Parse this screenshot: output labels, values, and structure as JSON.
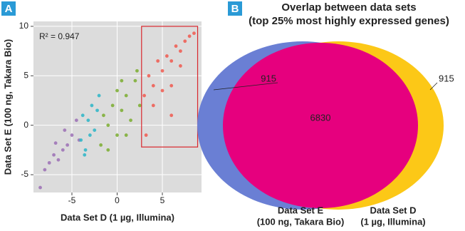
{
  "chart_data": [
    {
      "type": "scatter",
      "panel_label": "A",
      "x_label": "Data Set D (1 µg, Illumina)",
      "y_label": "Data Set E (100 ng, Takara Bio)",
      "annotation": "R² = 0.947",
      "xlim": [
        -9.25,
        9.33
      ],
      "ylim": [
        -6.8,
        10.5
      ],
      "xticks": [
        -5,
        0,
        5
      ],
      "yticks": [
        -5,
        0,
        5,
        10
      ],
      "grid": true,
      "highlight_box": {
        "xlim": [
          2.7,
          8.9
        ],
        "ylim": [
          -2.2,
          10
        ],
        "color": "#d9262c"
      },
      "series": [
        {
          "color": "#9b6fb5",
          "x": [
            -8,
            -7.5,
            -7,
            -6.8,
            -6.5,
            -6,
            -5.8,
            -5.5,
            -5,
            -4.5,
            -4.2,
            -8.5
          ],
          "y": [
            -4.5,
            -3.8,
            -3,
            -1.8,
            -3.5,
            -2.5,
            -0.5,
            -2,
            -1,
            0.5,
            -1.5,
            -6.3
          ]
        },
        {
          "color": "#2ab5c7",
          "x": [
            -4,
            -3.8,
            -3.5,
            -3.2,
            -3,
            -2.8,
            -2.5,
            -2.2,
            -2,
            -3.6
          ],
          "y": [
            -1.5,
            1,
            -2.5,
            0.5,
            -1,
            2,
            -0.5,
            1.5,
            3,
            -3
          ]
        },
        {
          "color": "#7aad2f",
          "x": [
            -1.8,
            -1.5,
            -1,
            -0.5,
            0,
            0.5,
            1,
            1.5,
            2,
            2.5,
            -1,
            0,
            1,
            2.2,
            0.5
          ],
          "y": [
            -2,
            1,
            0,
            2,
            -1,
            1.5,
            3,
            0.5,
            4.5,
            2,
            -2.5,
            3.5,
            -1,
            5.5,
            4.5
          ]
        },
        {
          "color": "#f0594f",
          "x": [
            3,
            3.5,
            4,
            4.5,
            5,
            5.5,
            6,
            6.5,
            7,
            7.5,
            8,
            8.5,
            4,
            5,
            6,
            3.2,
            7,
            6
          ],
          "y": [
            3,
            5,
            4,
            6.5,
            5.5,
            7,
            6.5,
            8,
            7.5,
            8.5,
            9,
            9.3,
            2,
            3.5,
            1,
            -1,
            6,
            4
          ]
        }
      ]
    },
    {
      "type": "venn",
      "panel_label": "B",
      "title": "Overlap between data sets",
      "subtitle": "(top 25% most highly expressed genes)",
      "sets": [
        {
          "name": "Data Set E",
          "detail": "(100 ng, Takara Bio)",
          "color": "#6a7fd4",
          "only": 915
        },
        {
          "name": "Data Set D",
          "detail": "(1 µg, Illumina)",
          "color": "#fcc817",
          "only": 915
        }
      ],
      "overlap": 6830,
      "overlap_color": "#e6007e"
    }
  ]
}
